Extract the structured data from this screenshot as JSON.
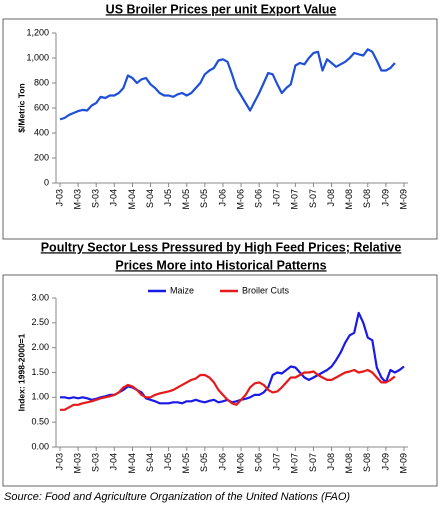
{
  "chart_data": [
    {
      "type": "line",
      "title": [
        "US Broiler Prices per unit Export Value"
      ],
      "ylabel": "$/Metric Ton",
      "categories": [
        "J-03",
        null,
        null,
        null,
        "M-03",
        null,
        null,
        null,
        "S-03",
        null,
        null,
        null,
        "J-04",
        null,
        null,
        null,
        "M-04",
        null,
        null,
        null,
        "S-04",
        null,
        null,
        null,
        "J-05",
        null,
        null,
        null,
        "M-05",
        null,
        null,
        null,
        "S-05",
        null,
        null,
        null,
        "J-06",
        null,
        null,
        null,
        "M-06",
        null,
        null,
        null,
        "S-06",
        null,
        null,
        null,
        "J-07",
        null,
        null,
        null,
        "M-07",
        null,
        null,
        null,
        "S-07",
        null,
        null,
        null,
        "J-08",
        null,
        null,
        null,
        "M-08",
        null,
        null,
        null,
        "S-08",
        null,
        null,
        null,
        "J-09",
        null,
        null,
        null,
        "M-09"
      ],
      "values": [
        510,
        520,
        545,
        560,
        575,
        585,
        580,
        620,
        640,
        690,
        680,
        700,
        700,
        720,
        760,
        860,
        840,
        800,
        830,
        840,
        790,
        760,
        720,
        700,
        700,
        690,
        710,
        720,
        700,
        720,
        760,
        800,
        870,
        900,
        920,
        980,
        990,
        970,
        870,
        760,
        700,
        640,
        580,
        650,
        720,
        800,
        880,
        870,
        790,
        720,
        760,
        790,
        940,
        960,
        950,
        1000,
        1040,
        1050,
        900,
        990,
        960,
        930,
        950,
        970,
        1000,
        1040,
        1030,
        1020,
        1070,
        1050,
        980,
        900,
        900,
        920,
        960,
        null,
        null
      ],
      "color": "#1f4fd6",
      "ylim": [
        0,
        1200
      ],
      "yticks": [
        0,
        200,
        400,
        600,
        800,
        {
          "value": 1000,
          "label": "1,000"
        },
        {
          "value": 1200,
          "label": "1,200"
        }
      ],
      "grid": false
    },
    {
      "type": "line",
      "title": [
        "Poultry Sector Less Pressured by High Feed Prices; Relative",
        "Prices More into Historical Patterns"
      ],
      "ylabel": "Index: 1998-2000=1",
      "categories": [
        "J-03",
        null,
        null,
        null,
        "M-03",
        null,
        null,
        null,
        "S-03",
        null,
        null,
        null,
        "J-04",
        null,
        null,
        null,
        "M-04",
        null,
        null,
        null,
        "S-04",
        null,
        null,
        null,
        "J-05",
        null,
        null,
        null,
        "M-05",
        null,
        null,
        null,
        "S-05",
        null,
        null,
        null,
        "J-06",
        null,
        null,
        null,
        "M-06",
        null,
        null,
        null,
        "S-06",
        null,
        null,
        null,
        "J-07",
        null,
        null,
        null,
        "M-07",
        null,
        null,
        null,
        "S-07",
        null,
        null,
        null,
        "J-08",
        null,
        null,
        null,
        "M-08",
        null,
        null,
        null,
        "S-08",
        null,
        null,
        null,
        "J-09",
        null,
        null,
        null,
        "M-09"
      ],
      "series": [
        {
          "name": "Maize",
          "color": "#1a1ae6",
          "values": [
            1.0,
            1.0,
            0.98,
            1.0,
            0.98,
            1.0,
            0.98,
            0.95,
            0.97,
            1.0,
            1.02,
            1.05,
            1.05,
            1.1,
            1.15,
            1.22,
            1.2,
            1.15,
            1.1,
            0.98,
            0.95,
            0.92,
            0.88,
            0.88,
            0.88,
            0.9,
            0.9,
            0.88,
            0.92,
            0.92,
            0.95,
            0.92,
            0.9,
            0.93,
            0.95,
            0.9,
            0.92,
            0.95,
            0.9,
            0.92,
            0.95,
            0.97,
            1.0,
            1.05,
            1.05,
            1.1,
            1.2,
            1.45,
            1.5,
            1.48,
            1.55,
            1.62,
            1.6,
            1.5,
            1.4,
            1.35,
            1.4,
            1.45,
            1.5,
            1.55,
            1.62,
            1.75,
            1.9,
            2.1,
            2.25,
            2.3,
            2.7,
            2.5,
            2.2,
            2.15,
            1.6,
            1.4,
            1.3,
            1.55,
            1.5,
            1.55,
            1.62
          ]
        },
        {
          "name": "Broiler Cuts",
          "color": "#e61a1a",
          "values": [
            0.75,
            0.75,
            0.8,
            0.85,
            0.85,
            0.88,
            0.9,
            0.92,
            0.95,
            0.98,
            1.0,
            1.02,
            1.05,
            1.1,
            1.2,
            1.25,
            1.22,
            1.15,
            1.05,
            1.0,
            1.0,
            1.05,
            1.08,
            1.1,
            1.12,
            1.15,
            1.2,
            1.25,
            1.3,
            1.35,
            1.38,
            1.45,
            1.45,
            1.4,
            1.3,
            1.15,
            1.05,
            0.95,
            0.88,
            0.85,
            0.95,
            1.05,
            1.2,
            1.28,
            1.3,
            1.25,
            1.15,
            1.1,
            1.12,
            1.2,
            1.3,
            1.4,
            1.4,
            1.45,
            1.5,
            1.5,
            1.52,
            1.45,
            1.4,
            1.35,
            1.35,
            1.4,
            1.45,
            1.5,
            1.52,
            1.55,
            1.5,
            1.52,
            1.55,
            1.5,
            1.4,
            1.3,
            1.3,
            1.35,
            1.42,
            null,
            null
          ]
        }
      ],
      "ylim": [
        0,
        3
      ],
      "yticks": [
        {
          "value": 0,
          "label": "0.00"
        },
        {
          "value": 0.5,
          "label": "0.50"
        },
        {
          "value": 1,
          "label": "1.00"
        },
        {
          "value": 1.5,
          "label": "1.50"
        },
        {
          "value": 2,
          "label": "2.00"
        },
        {
          "value": 2.5,
          "label": "2.50"
        },
        {
          "value": 3,
          "label": "3.00"
        }
      ],
      "grid": false
    }
  ],
  "source": "Source: Food and Agriculture Organization of the United Nations (FAO)"
}
